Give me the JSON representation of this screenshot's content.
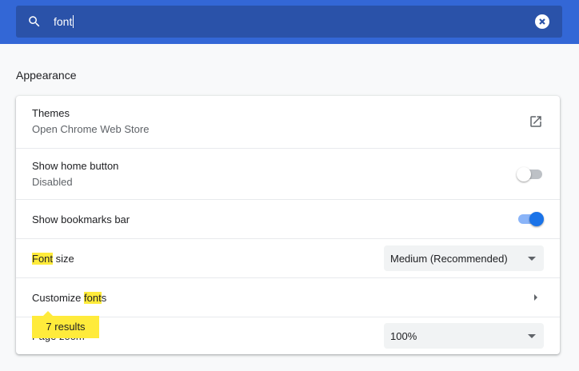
{
  "search": {
    "query": "font",
    "icon": "search-icon",
    "clear_icon": "clear-icon"
  },
  "section_title": "Appearance",
  "rows": [
    {
      "label": "Themes",
      "sub": "Open Chrome Web Store",
      "icon": "open-in-new-icon"
    },
    {
      "label": "Show home button",
      "sub": "Disabled",
      "toggle": false
    },
    {
      "label": "Show bookmarks bar",
      "toggle": true
    },
    {
      "label_hl": "Font",
      "label_rest": " size",
      "select": "Medium (Recommended)"
    },
    {
      "label_pre": "Customize ",
      "label_hl": "font",
      "label_rest": "s",
      "icon": "arrow-right-icon"
    },
    {
      "label": "Page zoom",
      "select": "100%"
    }
  ],
  "tooltip": "7 results",
  "colors": {
    "header": "#3367d6",
    "accent": "#1a73e8",
    "highlight": "#ffeb3b"
  }
}
